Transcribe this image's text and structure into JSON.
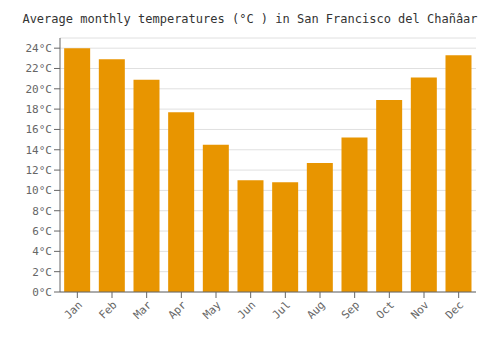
{
  "chart_data": {
    "type": "bar",
    "title": "Average monthly temperatures (°C ) in San Francisco del Chañâar",
    "categories": [
      "Jan",
      "Feb",
      "Mar",
      "Apr",
      "May",
      "Jun",
      "Jul",
      "Aug",
      "Sep",
      "Oct",
      "Nov",
      "Dec"
    ],
    "values": [
      24.0,
      22.9,
      20.9,
      17.7,
      14.5,
      11.0,
      10.8,
      12.7,
      15.2,
      18.9,
      21.1,
      23.3
    ],
    "color": "#E89500",
    "ylim": [
      0,
      25
    ],
    "yticks": [
      {
        "value": 0,
        "label": "0°C"
      },
      {
        "value": 2,
        "label": "2°C"
      },
      {
        "value": 4,
        "label": "4°C"
      },
      {
        "value": 6,
        "label": "6°C"
      },
      {
        "value": 8,
        "label": "8°C"
      },
      {
        "value": 10,
        "label": "10°C"
      },
      {
        "value": 12,
        "label": "12°C"
      },
      {
        "value": 14,
        "label": "14°C"
      },
      {
        "value": 16,
        "label": "16°C"
      },
      {
        "value": 18,
        "label": "18°C"
      },
      {
        "value": 20,
        "label": "20°C"
      },
      {
        "value": 22,
        "label": "22°C"
      },
      {
        "value": 24,
        "label": "24°C"
      }
    ],
    "grid": true
  }
}
